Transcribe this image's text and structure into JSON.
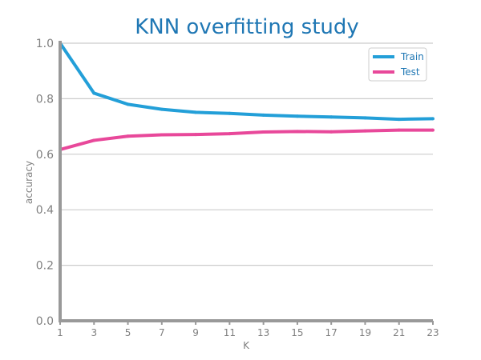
{
  "chart_data": {
    "type": "line",
    "title": "KNN overfitting study",
    "xlabel": "K",
    "ylabel": "accuracy",
    "x": [
      1,
      3,
      5,
      7,
      9,
      11,
      13,
      15,
      17,
      19,
      21,
      23
    ],
    "xticks": [
      "1",
      "3",
      "5",
      "7",
      "9",
      "11",
      "13",
      "15",
      "17",
      "19",
      "21",
      "23"
    ],
    "yticks": [
      "0.0",
      "0.2",
      "0.4",
      "0.6",
      "0.8",
      "1.0"
    ],
    "ylim": [
      0,
      1
    ],
    "xlim": [
      1,
      23
    ],
    "grid": "horizontal",
    "legend_position": "top-right",
    "series": [
      {
        "name": "Train",
        "color": "#239fd8",
        "values": [
          1.0,
          0.82,
          0.78,
          0.762,
          0.751,
          0.747,
          0.741,
          0.737,
          0.734,
          0.731,
          0.726,
          0.728
        ]
      },
      {
        "name": "Test",
        "color": "#e8489a",
        "values": [
          0.617,
          0.65,
          0.665,
          0.67,
          0.671,
          0.674,
          0.68,
          0.682,
          0.681,
          0.684,
          0.687,
          0.687
        ]
      }
    ]
  }
}
